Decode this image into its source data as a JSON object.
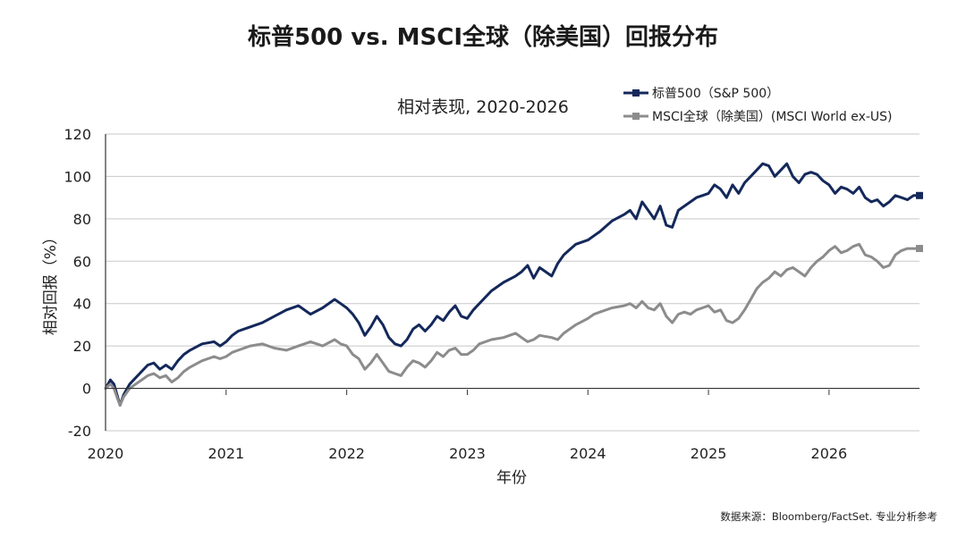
{
  "chart_data": {
    "type": "line",
    "title": "标普500 vs. MSCI全球（除美国）回报分布",
    "subtitle": "相对表现, 2020-2026",
    "xlabel": "年份",
    "ylabel": "相对回报（%）",
    "xlim": [
      2020,
      2026.75
    ],
    "ylim": [
      -20,
      120
    ],
    "x_ticks": [
      "2020",
      "2021",
      "2022",
      "2023",
      "2024",
      "2025",
      "2026"
    ],
    "y_ticks": [
      "120",
      "100",
      "80",
      "60",
      "40",
      "20",
      "0",
      "-20"
    ],
    "grid": true,
    "legend_position": "top-right",
    "source": "数据来源：Bloomberg/FactSet. 专业分析参考",
    "series": [
      {
        "name": "标普500（S&P 500）",
        "color": "#14285a",
        "marker": "square",
        "x": [
          2020.0,
          2020.04,
          2020.07,
          2020.1,
          2020.12,
          2020.15,
          2020.2,
          2020.25,
          2020.3,
          2020.35,
          2020.4,
          2020.45,
          2020.5,
          2020.55,
          2020.6,
          2020.65,
          2020.7,
          2020.8,
          2020.9,
          2020.95,
          2021.0,
          2021.05,
          2021.1,
          2021.2,
          2021.3,
          2021.4,
          2021.5,
          2021.6,
          2021.7,
          2021.8,
          2021.9,
          2021.95,
          2022.0,
          2022.05,
          2022.1,
          2022.15,
          2022.2,
          2022.25,
          2022.3,
          2022.35,
          2022.4,
          2022.45,
          2022.5,
          2022.55,
          2022.6,
          2022.65,
          2022.7,
          2022.75,
          2022.8,
          2022.85,
          2022.9,
          2022.95,
          2023.0,
          2023.05,
          2023.1,
          2023.2,
          2023.3,
          2023.4,
          2023.45,
          2023.5,
          2023.55,
          2023.6,
          2023.7,
          2023.75,
          2023.8,
          2023.9,
          2024.0,
          2024.05,
          2024.1,
          2024.2,
          2024.3,
          2024.35,
          2024.4,
          2024.45,
          2024.5,
          2024.55,
          2024.6,
          2024.65,
          2024.7,
          2024.75,
          2024.8,
          2024.85,
          2024.9,
          2024.95,
          2025.0,
          2025.05,
          2025.1,
          2025.15,
          2025.2,
          2025.25,
          2025.3,
          2025.35,
          2025.4,
          2025.45,
          2025.5,
          2025.55,
          2025.6,
          2025.65,
          2025.7,
          2025.75,
          2025.8,
          2025.85,
          2025.9,
          2025.95,
          2026.0,
          2026.05,
          2026.1,
          2026.15,
          2026.2,
          2026.25,
          2026.3,
          2026.35,
          2026.4,
          2026.45,
          2026.5,
          2026.55,
          2026.6,
          2026.65,
          2026.7,
          2026.75
        ],
        "values": [
          0,
          4,
          2,
          -4,
          -8,
          -3,
          2,
          5,
          8,
          11,
          12,
          9,
          11,
          9,
          13,
          16,
          18,
          21,
          22,
          20,
          22,
          25,
          27,
          29,
          31,
          34,
          37,
          39,
          35,
          38,
          42,
          40,
          38,
          35,
          31,
          25,
          29,
          34,
          30,
          24,
          21,
          20,
          23,
          28,
          30,
          27,
          30,
          34,
          32,
          36,
          39,
          34,
          33,
          37,
          40,
          46,
          50,
          53,
          55,
          58,
          52,
          57,
          53,
          59,
          63,
          68,
          70,
          72,
          74,
          79,
          82,
          84,
          80,
          88,
          84,
          80,
          86,
          77,
          76,
          84,
          86,
          88,
          90,
          91,
          92,
          96,
          94,
          90,
          96,
          92,
          97,
          100,
          103,
          106,
          105,
          100,
          103,
          106,
          100,
          97,
          101,
          102,
          101,
          98,
          96,
          92,
          95,
          94,
          92,
          95,
          90,
          88,
          89,
          86,
          88,
          91,
          90,
          89,
          91,
          91
        ]
      },
      {
        "name": "MSCI全球（除美国）(MSCI World ex-US)",
        "color": "#8c8c8c",
        "marker": "square",
        "x": [
          2020.0,
          2020.04,
          2020.07,
          2020.1,
          2020.12,
          2020.15,
          2020.2,
          2020.25,
          2020.3,
          2020.35,
          2020.4,
          2020.45,
          2020.5,
          2020.55,
          2020.6,
          2020.65,
          2020.7,
          2020.8,
          2020.9,
          2020.95,
          2021.0,
          2021.05,
          2021.1,
          2021.2,
          2021.3,
          2021.4,
          2021.5,
          2021.6,
          2021.7,
          2021.8,
          2021.9,
          2021.95,
          2022.0,
          2022.05,
          2022.1,
          2022.15,
          2022.2,
          2022.25,
          2022.3,
          2022.35,
          2022.4,
          2022.45,
          2022.5,
          2022.55,
          2022.6,
          2022.65,
          2022.7,
          2022.75,
          2022.8,
          2022.85,
          2022.9,
          2022.95,
          2023.0,
          2023.05,
          2023.1,
          2023.2,
          2023.3,
          2023.4,
          2023.45,
          2023.5,
          2023.55,
          2023.6,
          2023.7,
          2023.75,
          2023.8,
          2023.9,
          2024.0,
          2024.05,
          2024.1,
          2024.2,
          2024.3,
          2024.35,
          2024.4,
          2024.45,
          2024.5,
          2024.55,
          2024.6,
          2024.65,
          2024.7,
          2024.75,
          2024.8,
          2024.85,
          2024.9,
          2024.95,
          2025.0,
          2025.05,
          2025.1,
          2025.15,
          2025.2,
          2025.25,
          2025.3,
          2025.35,
          2025.4,
          2025.45,
          2025.5,
          2025.55,
          2025.6,
          2025.65,
          2025.7,
          2025.75,
          2025.8,
          2025.85,
          2025.9,
          2025.95,
          2026.0,
          2026.05,
          2026.1,
          2026.15,
          2026.2,
          2026.25,
          2026.3,
          2026.35,
          2026.4,
          2026.45,
          2026.5,
          2026.55,
          2026.6,
          2026.65,
          2026.7,
          2026.75
        ],
        "values": [
          0,
          2,
          0,
          -5,
          -8,
          -4,
          0,
          2,
          4,
          6,
          7,
          5,
          6,
          3,
          5,
          8,
          10,
          13,
          15,
          14,
          15,
          17,
          18,
          20,
          21,
          19,
          18,
          20,
          22,
          20,
          23,
          21,
          20,
          16,
          14,
          9,
          12,
          16,
          12,
          8,
          7,
          6,
          10,
          13,
          12,
          10,
          13,
          17,
          15,
          18,
          19,
          16,
          16,
          18,
          21,
          23,
          24,
          26,
          24,
          22,
          23,
          25,
          24,
          23,
          26,
          30,
          33,
          35,
          36,
          38,
          39,
          40,
          38,
          41,
          38,
          37,
          40,
          34,
          31,
          35,
          36,
          35,
          37,
          38,
          39,
          36,
          37,
          32,
          31,
          33,
          37,
          42,
          47,
          50,
          52,
          55,
          53,
          56,
          57,
          55,
          53,
          57,
          60,
          62,
          65,
          67,
          64,
          65,
          67,
          68,
          63,
          62,
          60,
          57,
          58,
          63,
          65,
          66,
          66,
          66
        ]
      }
    ]
  }
}
